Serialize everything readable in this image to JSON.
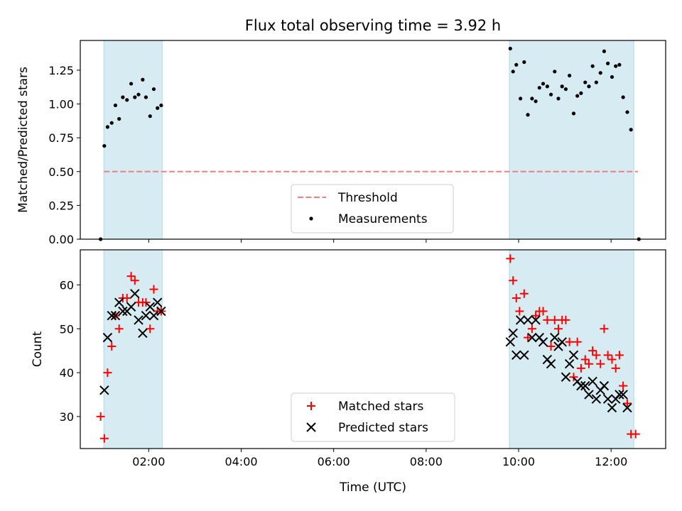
{
  "title": "Flux total observing time = 3.92 h",
  "colors": {
    "threshold": "#f08080",
    "measurements": "#000000",
    "matched": "#ff0000",
    "predicted": "#000000",
    "span": "#add8e6"
  },
  "chart_data": [
    {
      "type": "scatter",
      "panel": "top",
      "ylabel": "Matched/Predicted stars",
      "xlim": [
        0.52,
        13.18
      ],
      "ylim": [
        0,
        1.47
      ],
      "yticks": [
        0.0,
        0.25,
        0.5,
        0.75,
        1.0,
        1.25
      ],
      "ytick_labels": [
        "0.00",
        "0.25",
        "0.50",
        "0.75",
        "1.00",
        "1.25"
      ],
      "observing_windows": [
        [
          1.03,
          2.29
        ],
        [
          9.8,
          12.49
        ]
      ],
      "threshold": {
        "name": "Threshold",
        "y": 0.5,
        "x_range": [
          1.03,
          12.58
        ]
      },
      "legend": {
        "position": "lower center",
        "entries": [
          "Threshold",
          "Measurements"
        ]
      },
      "series": [
        {
          "name": "Measurements",
          "points": [
            [
              0.96,
              0.0
            ],
            [
              1.04,
              0.69
            ],
            [
              1.11,
              0.83
            ],
            [
              1.2,
              0.86
            ],
            [
              1.28,
              0.99
            ],
            [
              1.36,
              0.89
            ],
            [
              1.44,
              1.05
            ],
            [
              1.53,
              1.03
            ],
            [
              1.62,
              1.15
            ],
            [
              1.7,
              1.05
            ],
            [
              1.78,
              1.07
            ],
            [
              1.87,
              1.18
            ],
            [
              1.94,
              1.05
            ],
            [
              2.03,
              0.91
            ],
            [
              2.11,
              1.11
            ],
            [
              2.19,
              0.97
            ],
            [
              2.27,
              0.99
            ],
            [
              9.82,
              1.41
            ],
            [
              9.88,
              1.24
            ],
            [
              9.95,
              1.29
            ],
            [
              10.04,
              1.04
            ],
            [
              10.12,
              1.31
            ],
            [
              10.2,
              0.92
            ],
            [
              10.29,
              1.04
            ],
            [
              10.37,
              1.02
            ],
            [
              10.45,
              1.12
            ],
            [
              10.53,
              1.15
            ],
            [
              10.62,
              1.13
            ],
            [
              10.7,
              1.07
            ],
            [
              10.78,
              1.24
            ],
            [
              10.86,
              1.04
            ],
            [
              10.94,
              1.13
            ],
            [
              11.02,
              1.11
            ],
            [
              11.1,
              1.21
            ],
            [
              11.19,
              0.93
            ],
            [
              11.27,
              1.06
            ],
            [
              11.35,
              1.08
            ],
            [
              11.44,
              1.16
            ],
            [
              11.52,
              1.13
            ],
            [
              11.6,
              1.28
            ],
            [
              11.68,
              1.16
            ],
            [
              11.77,
              1.23
            ],
            [
              11.85,
              1.39
            ],
            [
              11.93,
              1.3
            ],
            [
              12.02,
              1.2
            ],
            [
              12.1,
              1.28
            ],
            [
              12.18,
              1.29
            ],
            [
              12.26,
              1.05
            ],
            [
              12.35,
              0.94
            ],
            [
              12.43,
              0.81
            ],
            [
              12.6,
              0.0
            ]
          ]
        }
      ]
    },
    {
      "type": "scatter",
      "panel": "bottom",
      "xlabel": "Time (UTC)",
      "ylabel": "Count",
      "xlim": [
        0.52,
        13.18
      ],
      "ylim": [
        22.7,
        68.0
      ],
      "xticks": [
        2,
        4,
        6,
        8,
        10,
        12
      ],
      "xtick_labels": [
        "02:00",
        "04:00",
        "06:00",
        "08:00",
        "10:00",
        "12:00"
      ],
      "yticks": [
        30,
        40,
        50,
        60
      ],
      "ytick_labels": [
        "30",
        "40",
        "50",
        "60"
      ],
      "observing_windows": [
        [
          1.03,
          2.29
        ],
        [
          9.8,
          12.49
        ]
      ],
      "legend": {
        "position": "lower center",
        "entries": [
          "Matched stars",
          "Predicted stars"
        ]
      },
      "series": [
        {
          "name": "Matched stars",
          "marker": "plus",
          "points": [
            [
              0.96,
              30
            ],
            [
              1.04,
              25
            ],
            [
              1.11,
              40
            ],
            [
              1.2,
              46
            ],
            [
              1.28,
              53
            ],
            [
              1.36,
              50
            ],
            [
              1.44,
              57
            ],
            [
              1.53,
              57
            ],
            [
              1.62,
              62
            ],
            [
              1.7,
              61
            ],
            [
              1.78,
              56
            ],
            [
              1.87,
              56
            ],
            [
              1.94,
              56
            ],
            [
              2.03,
              50
            ],
            [
              2.11,
              59
            ],
            [
              2.19,
              54
            ],
            [
              2.27,
              54
            ],
            [
              9.82,
              66
            ],
            [
              9.88,
              61
            ],
            [
              9.95,
              57
            ],
            [
              10.02,
              54
            ],
            [
              10.12,
              58
            ],
            [
              10.2,
              48
            ],
            [
              10.29,
              50
            ],
            [
              10.37,
              53
            ],
            [
              10.45,
              54
            ],
            [
              10.53,
              54
            ],
            [
              10.62,
              52
            ],
            [
              10.7,
              46
            ],
            [
              10.78,
              52
            ],
            [
              10.86,
              50
            ],
            [
              10.94,
              52
            ],
            [
              11.02,
              52
            ],
            [
              11.1,
              47
            ],
            [
              11.19,
              39
            ],
            [
              11.27,
              47
            ],
            [
              11.35,
              41
            ],
            [
              11.44,
              43
            ],
            [
              11.52,
              42
            ],
            [
              11.6,
              45
            ],
            [
              11.68,
              44
            ],
            [
              11.77,
              42
            ],
            [
              11.85,
              50
            ],
            [
              11.93,
              44
            ],
            [
              12.02,
              43
            ],
            [
              12.1,
              41
            ],
            [
              12.18,
              44
            ],
            [
              12.26,
              37
            ],
            [
              12.35,
              33
            ],
            [
              12.43,
              26
            ],
            [
              12.53,
              26
            ]
          ]
        },
        {
          "name": "Predicted stars",
          "marker": "x",
          "points": [
            [
              1.04,
              36
            ],
            [
              1.11,
              48
            ],
            [
              1.2,
              53
            ],
            [
              1.28,
              53
            ],
            [
              1.36,
              56
            ],
            [
              1.44,
              54
            ],
            [
              1.53,
              54
            ],
            [
              1.62,
              55
            ],
            [
              1.7,
              58
            ],
            [
              1.78,
              52
            ],
            [
              1.87,
              49
            ],
            [
              1.94,
              53
            ],
            [
              2.03,
              55
            ],
            [
              2.11,
              53
            ],
            [
              2.19,
              56
            ],
            [
              2.27,
              54
            ],
            [
              9.82,
              47
            ],
            [
              9.88,
              49
            ],
            [
              9.95,
              44
            ],
            [
              10.04,
              52
            ],
            [
              10.12,
              44
            ],
            [
              10.2,
              52
            ],
            [
              10.29,
              48
            ],
            [
              10.37,
              52
            ],
            [
              10.45,
              48
            ],
            [
              10.53,
              47
            ],
            [
              10.62,
              43
            ],
            [
              10.7,
              42
            ],
            [
              10.78,
              48
            ],
            [
              10.86,
              46
            ],
            [
              10.94,
              47
            ],
            [
              11.02,
              39
            ],
            [
              11.1,
              42
            ],
            [
              11.19,
              44
            ],
            [
              11.27,
              38
            ],
            [
              11.35,
              37
            ],
            [
              11.44,
              37
            ],
            [
              11.52,
              35
            ],
            [
              11.6,
              38
            ],
            [
              11.68,
              34
            ],
            [
              11.77,
              36
            ],
            [
              11.85,
              37
            ],
            [
              11.93,
              34
            ],
            [
              12.02,
              32
            ],
            [
              12.1,
              34
            ],
            [
              12.18,
              35
            ],
            [
              12.26,
              35
            ],
            [
              12.35,
              32
            ]
          ]
        }
      ]
    }
  ]
}
